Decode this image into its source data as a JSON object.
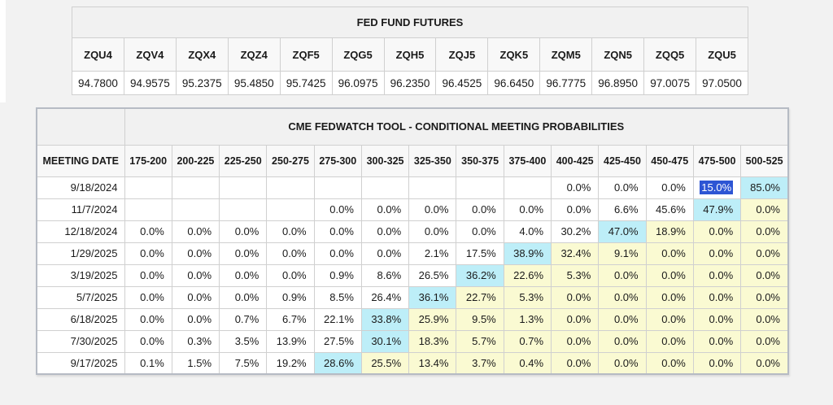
{
  "futures_table": {
    "title": "FED FUND FUTURES",
    "contracts": [
      "ZQU4",
      "ZQV4",
      "ZQX4",
      "ZQZ4",
      "ZQF5",
      "ZQG5",
      "ZQH5",
      "ZQJ5",
      "ZQK5",
      "ZQM5",
      "ZQN5",
      "ZQQ5",
      "ZQU5"
    ],
    "prices": [
      "94.7800",
      "94.9575",
      "95.2375",
      "95.4850",
      "95.7425",
      "96.0975",
      "96.2350",
      "96.4525",
      "96.6450",
      "96.7775",
      "96.8950",
      "97.0075",
      "97.0500"
    ]
  },
  "fedwatch_table": {
    "title": "CME FEDWATCH TOOL - CONDITIONAL MEETING PROBABILITIES",
    "date_header": "MEETING DATE",
    "rate_ranges": [
      "175-200",
      "200-225",
      "225-250",
      "250-275",
      "275-300",
      "300-325",
      "325-350",
      "350-375",
      "375-400",
      "400-425",
      "425-450",
      "450-475",
      "475-500",
      "500-525"
    ],
    "rows": [
      {
        "date": "9/18/2024",
        "cells": [
          "",
          "",
          "",
          "",
          "",
          "",
          "",
          "",
          "",
          "0.0%",
          "0.0%",
          "0.0%",
          "15.0%",
          "85.0%"
        ],
        "marks": [
          "",
          "",
          "",
          "",
          "",
          "",
          "",
          "",
          "",
          "",
          "",
          "",
          "selected",
          "max"
        ]
      },
      {
        "date": "11/7/2024",
        "cells": [
          "",
          "",
          "",
          "",
          "0.0%",
          "0.0%",
          "0.0%",
          "0.0%",
          "0.0%",
          "0.0%",
          "6.6%",
          "45.6%",
          "47.9%",
          "0.0%"
        ],
        "marks": [
          "",
          "",
          "",
          "",
          "",
          "",
          "",
          "",
          "",
          "",
          "",
          "",
          "max",
          "tail"
        ]
      },
      {
        "date": "12/18/2024",
        "cells": [
          "0.0%",
          "0.0%",
          "0.0%",
          "0.0%",
          "0.0%",
          "0.0%",
          "0.0%",
          "0.0%",
          "4.0%",
          "30.2%",
          "47.0%",
          "18.9%",
          "0.0%",
          "0.0%"
        ],
        "marks": [
          "",
          "",
          "",
          "",
          "",
          "",
          "",
          "",
          "",
          "",
          "max",
          "tail",
          "tail",
          "tail"
        ]
      },
      {
        "date": "1/29/2025",
        "cells": [
          "0.0%",
          "0.0%",
          "0.0%",
          "0.0%",
          "0.0%",
          "0.0%",
          "2.1%",
          "17.5%",
          "38.9%",
          "32.4%",
          "9.1%",
          "0.0%",
          "0.0%",
          "0.0%"
        ],
        "marks": [
          "",
          "",
          "",
          "",
          "",
          "",
          "",
          "",
          "max",
          "tail",
          "tail",
          "tail",
          "tail",
          "tail"
        ]
      },
      {
        "date": "3/19/2025",
        "cells": [
          "0.0%",
          "0.0%",
          "0.0%",
          "0.0%",
          "0.9%",
          "8.6%",
          "26.5%",
          "36.2%",
          "22.6%",
          "5.3%",
          "0.0%",
          "0.0%",
          "0.0%",
          "0.0%"
        ],
        "marks": [
          "",
          "",
          "",
          "",
          "",
          "",
          "",
          "max",
          "tail",
          "tail",
          "tail",
          "tail",
          "tail",
          "tail"
        ]
      },
      {
        "date": "5/7/2025",
        "cells": [
          "0.0%",
          "0.0%",
          "0.0%",
          "0.9%",
          "8.5%",
          "26.4%",
          "36.1%",
          "22.7%",
          "5.3%",
          "0.0%",
          "0.0%",
          "0.0%",
          "0.0%",
          "0.0%"
        ],
        "marks": [
          "",
          "",
          "",
          "",
          "",
          "",
          "max",
          "tail",
          "tail",
          "tail",
          "tail",
          "tail",
          "tail",
          "tail"
        ]
      },
      {
        "date": "6/18/2025",
        "cells": [
          "0.0%",
          "0.0%",
          "0.7%",
          "6.7%",
          "22.1%",
          "33.8%",
          "25.9%",
          "9.5%",
          "1.3%",
          "0.0%",
          "0.0%",
          "0.0%",
          "0.0%",
          "0.0%"
        ],
        "marks": [
          "",
          "",
          "",
          "",
          "",
          "max",
          "tail",
          "tail",
          "tail",
          "tail",
          "tail",
          "tail",
          "tail",
          "tail"
        ]
      },
      {
        "date": "7/30/2025",
        "cells": [
          "0.0%",
          "0.3%",
          "3.5%",
          "13.9%",
          "27.5%",
          "30.1%",
          "18.3%",
          "5.7%",
          "0.7%",
          "0.0%",
          "0.0%",
          "0.0%",
          "0.0%",
          "0.0%"
        ],
        "marks": [
          "",
          "",
          "",
          "",
          "",
          "max",
          "tail",
          "tail",
          "tail",
          "tail",
          "tail",
          "tail",
          "tail",
          "tail"
        ]
      },
      {
        "date": "9/17/2025",
        "cells": [
          "0.1%",
          "1.5%",
          "7.5%",
          "19.2%",
          "28.6%",
          "25.5%",
          "13.4%",
          "3.7%",
          "0.4%",
          "0.0%",
          "0.0%",
          "0.0%",
          "0.0%",
          "0.0%"
        ],
        "marks": [
          "",
          "",
          "",
          "",
          "max",
          "tail",
          "tail",
          "tail",
          "tail",
          "tail",
          "tail",
          "tail",
          "tail",
          "tail"
        ]
      }
    ]
  },
  "colors": {
    "max_highlight": "#bdeef8",
    "tail_highlight": "#fafad2",
    "text_selection": "#2d55d4"
  }
}
